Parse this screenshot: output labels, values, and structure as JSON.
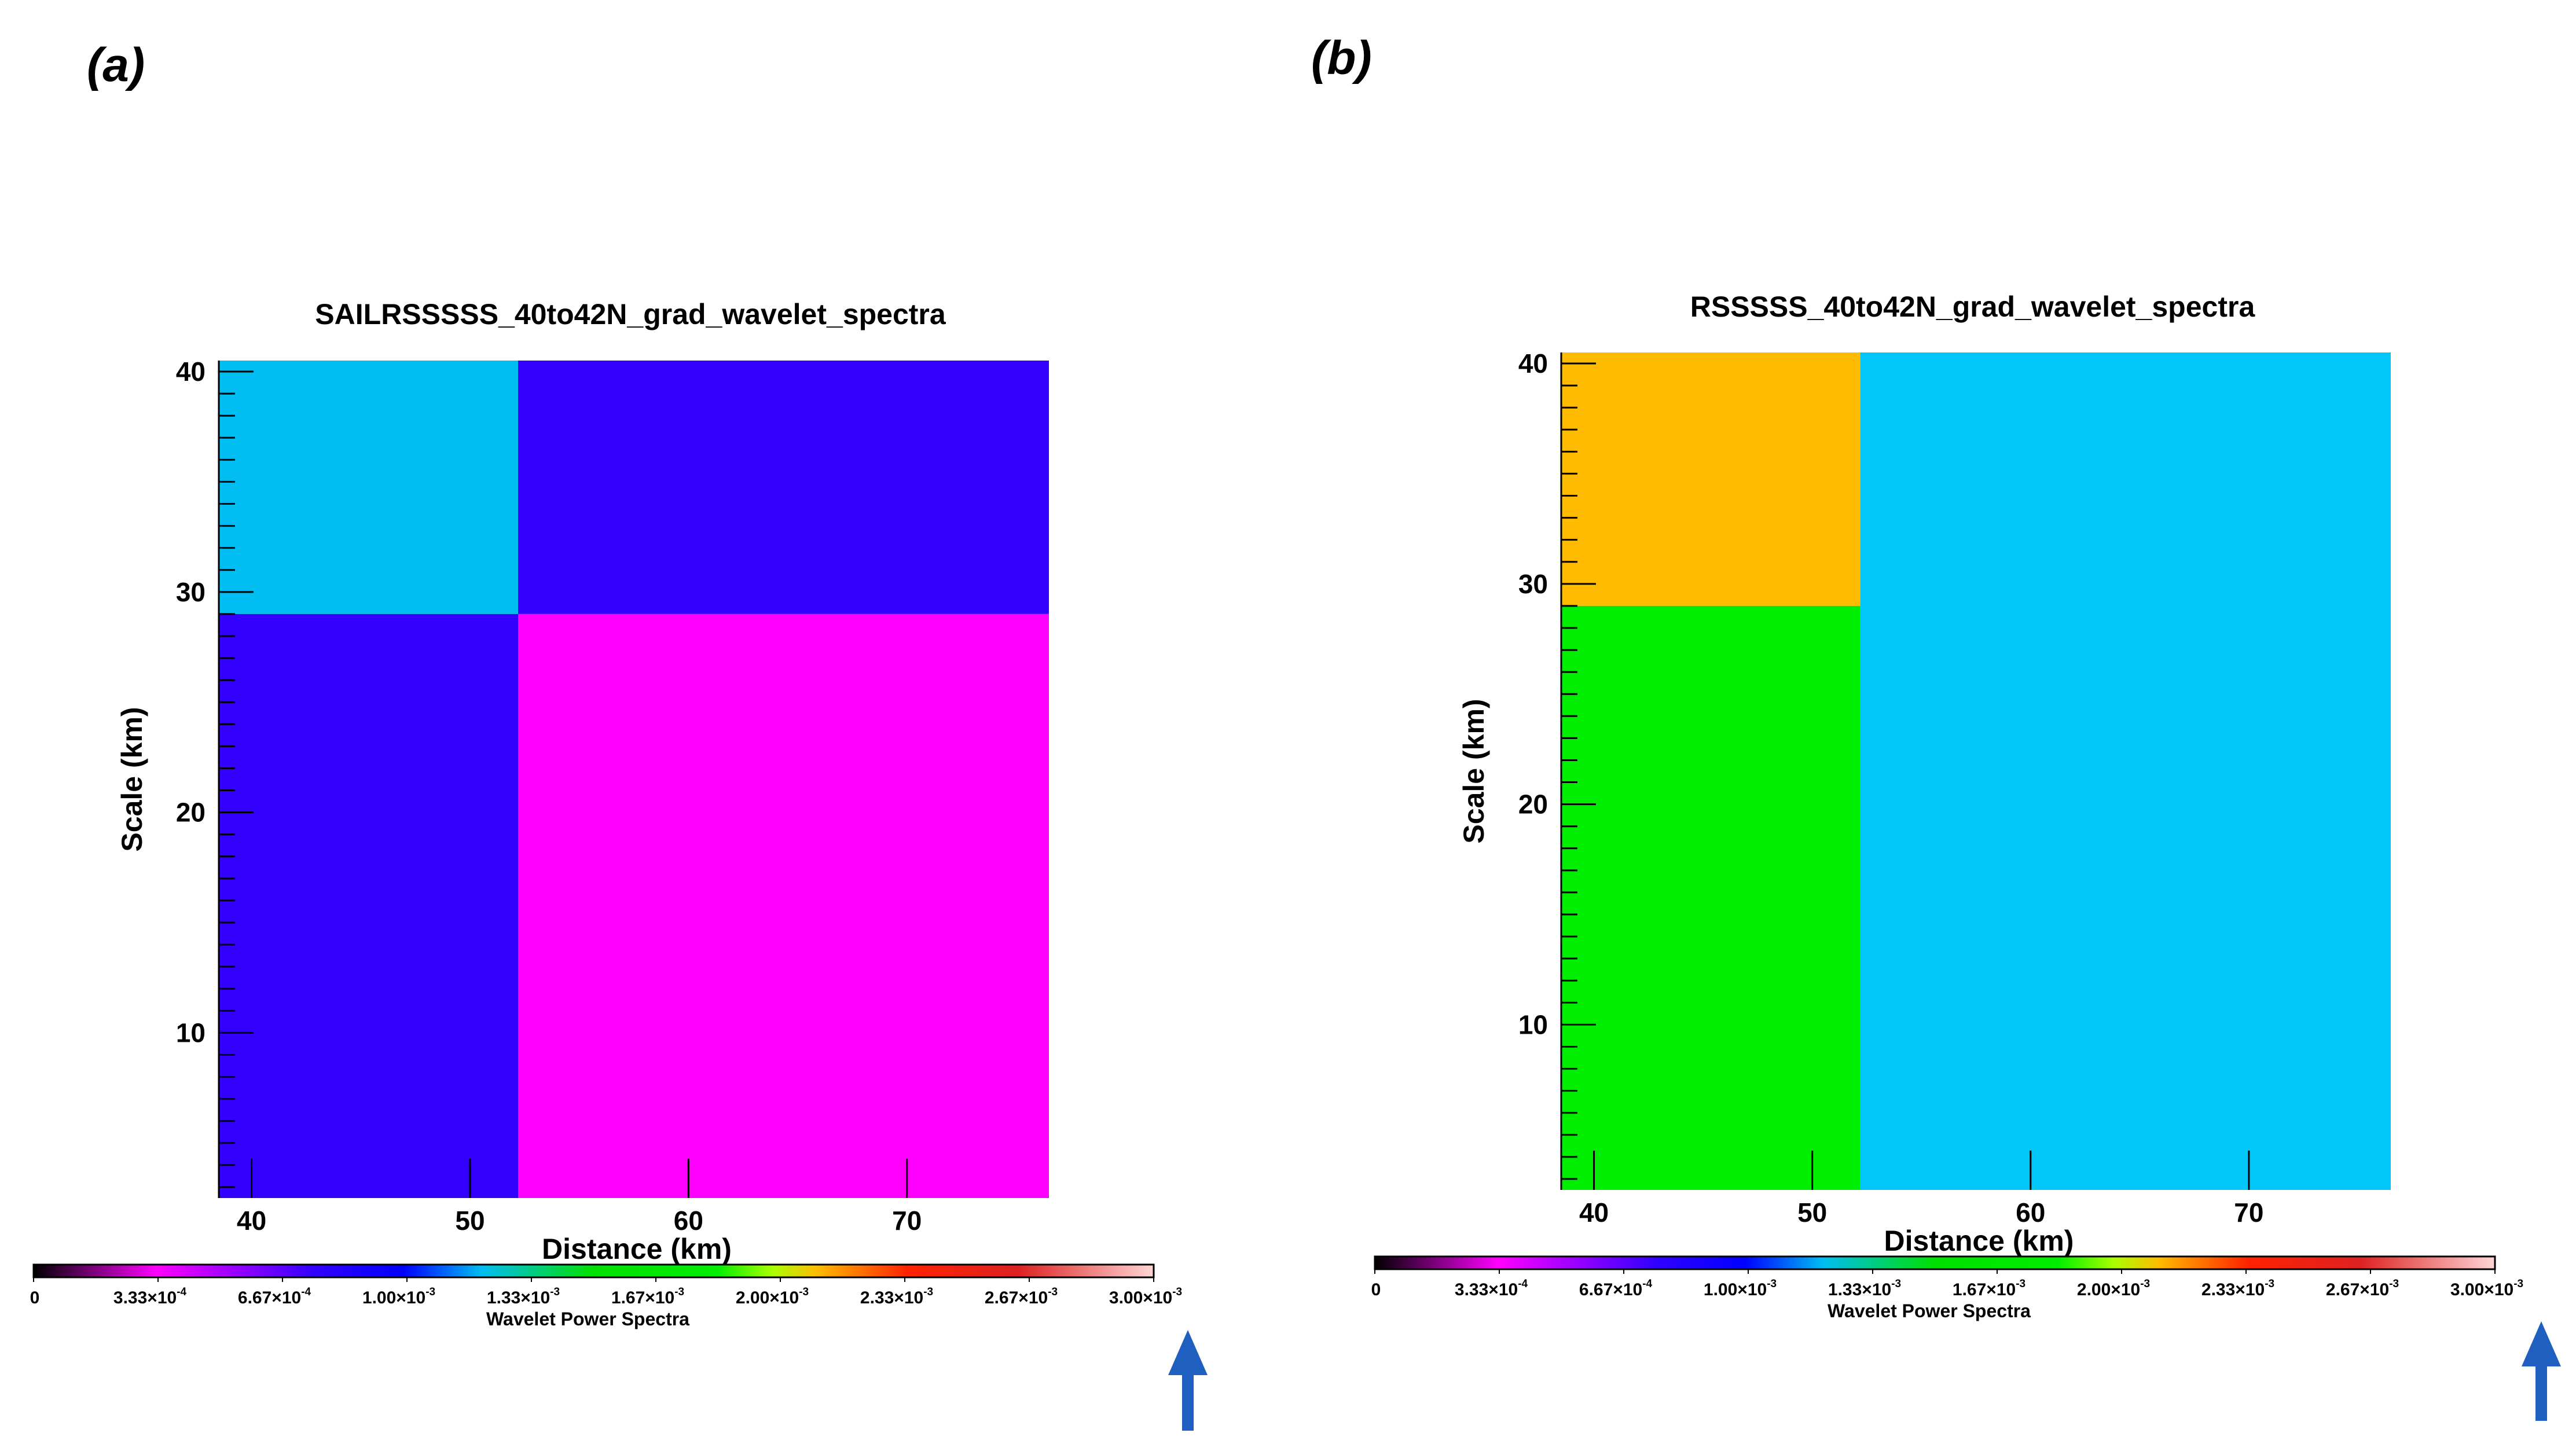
{
  "chart_data": [
    {
      "type": "heatmap",
      "panel_label": "(a)",
      "title": "SAILRSSSSS_40to42N_grad_wavelet_spectra",
      "xlabel": "Distance (km)",
      "ylabel": "Scale (km)",
      "xlim": [
        38.5,
        76.5
      ],
      "ylim": [
        2.5,
        40.5
      ],
      "xticks": [
        40,
        50,
        60,
        70
      ],
      "yticks": [
        10,
        20,
        30,
        40
      ],
      "x_bins": [
        38.5,
        52.2,
        76.5
      ],
      "y_bins": [
        2.5,
        29.0,
        40.5
      ],
      "cells": [
        {
          "x0": 38.5,
          "x1": 52.2,
          "y0": 29.0,
          "y1": 40.5,
          "value": 0.00118,
          "color": "#00BDF2"
        },
        {
          "x0": 52.2,
          "x1": 76.5,
          "y0": 29.0,
          "y1": 40.5,
          "value": 0.0008,
          "color": "#3300FF"
        },
        {
          "x0": 38.5,
          "x1": 52.2,
          "y0": 2.5,
          "y1": 29.0,
          "value": 0.0008,
          "color": "#3300FF"
        },
        {
          "x0": 52.2,
          "x1": 76.5,
          "y0": 2.5,
          "y1": 29.0,
          "value": 0.00035,
          "color": "#FF00FF"
        }
      ]
    },
    {
      "type": "heatmap",
      "panel_label": "(b)",
      "title": "RSSSSS_40to42N_grad_wavelet_spectra",
      "xlabel": "Distance (km)",
      "ylabel": "Scale (km)",
      "xlim": [
        38.5,
        76.5
      ],
      "ylim": [
        2.5,
        40.5
      ],
      "xticks": [
        40,
        50,
        60,
        70
      ],
      "yticks": [
        10,
        20,
        30,
        40
      ],
      "x_bins": [
        38.5,
        52.2,
        76.5
      ],
      "y_bins": [
        2.5,
        29.0,
        40.5
      ],
      "cells": [
        {
          "x0": 38.5,
          "x1": 52.2,
          "y0": 29.0,
          "y1": 40.5,
          "value": 0.00225,
          "color": "#FFBB00"
        },
        {
          "x0": 52.2,
          "x1": 76.5,
          "y0": 2.5,
          "y1": 40.5,
          "value": 0.00125,
          "color": "#00C6FA"
        },
        {
          "x0": 38.5,
          "x1": 52.2,
          "y0": 2.5,
          "y1": 29.0,
          "value": 0.0018,
          "color": "#00EE00"
        }
      ]
    }
  ],
  "colorbar": {
    "title": "Wavelet Power Spectra",
    "range": [
      0,
      0.003
    ],
    "labels": [
      {
        "mant": "0",
        "exp": ""
      },
      {
        "mant": "3.33×10",
        "exp": "-4"
      },
      {
        "mant": "6.67×10",
        "exp": "-4"
      },
      {
        "mant": "1.00×10",
        "exp": "-3"
      },
      {
        "mant": "1.33×10",
        "exp": "-3"
      },
      {
        "mant": "1.67×10",
        "exp": "-3"
      },
      {
        "mant": "2.00×10",
        "exp": "-3"
      },
      {
        "mant": "2.33×10",
        "exp": "-3"
      },
      {
        "mant": "2.67×10",
        "exp": "-3"
      },
      {
        "mant": "3.00×10",
        "exp": "-3"
      }
    ],
    "stops": [
      {
        "v": 0.0,
        "c": "#000000"
      },
      {
        "v": 0.11,
        "c": "#ff00ff"
      },
      {
        "v": 0.25,
        "c": "#3300ff"
      },
      {
        "v": 0.33,
        "c": "#0000ff"
      },
      {
        "v": 0.4,
        "c": "#00bdf2"
      },
      {
        "v": 0.5,
        "c": "#00e000"
      },
      {
        "v": 0.61,
        "c": "#00ee00"
      },
      {
        "v": 0.66,
        "c": "#aaff00"
      },
      {
        "v": 0.7,
        "c": "#ffbb00"
      },
      {
        "v": 0.78,
        "c": "#ff2200"
      },
      {
        "v": 0.88,
        "c": "#dd2222"
      },
      {
        "v": 1.0,
        "c": "#ffd6d6"
      }
    ]
  },
  "arrow": {
    "color": "#1F5FBF"
  }
}
